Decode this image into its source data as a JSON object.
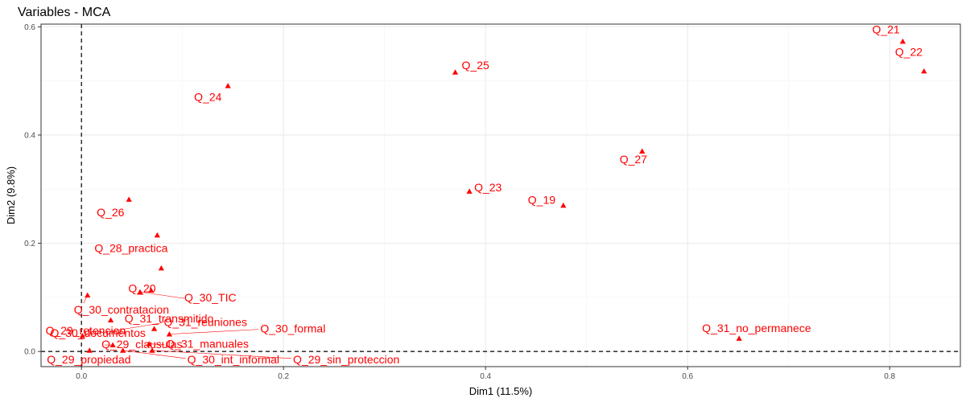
{
  "chart_data": {
    "type": "scatter",
    "title": "Variables - MCA",
    "xlabel": "Dim1 (11.5%)",
    "ylabel": "Dim2 (9.8%)",
    "xlim": [
      -0.04,
      0.87
    ],
    "ylim": [
      -0.028,
      0.605
    ],
    "xticks": [
      0.0,
      0.2,
      0.4,
      0.6,
      0.8
    ],
    "xtick_labels": [
      "0.0",
      "0.2",
      "0.4",
      "0.6",
      "0.8"
    ],
    "yticks": [
      0.0,
      0.2,
      0.4,
      0.6
    ],
    "ytick_labels": [
      "0.0",
      "0.2",
      "0.4",
      "0.6"
    ],
    "grid": true,
    "reference_lines": {
      "x": 0,
      "y": 0,
      "style": "dashed"
    },
    "marker": "triangle",
    "color": "#ff0000",
    "points": [
      {
        "label": "Q_21",
        "x": 0.813,
        "y": 0.573
      },
      {
        "label": "Q_22",
        "x": 0.834,
        "y": 0.518
      },
      {
        "label": "Q_25",
        "x": 0.37,
        "y": 0.516
      },
      {
        "label": "Q_24",
        "x": 0.145,
        "y": 0.491
      },
      {
        "label": "Q_27",
        "x": 0.555,
        "y": 0.37
      },
      {
        "label": "Q_23",
        "x": 0.384,
        "y": 0.296
      },
      {
        "label": "Q_19",
        "x": 0.477,
        "y": 0.27
      },
      {
        "label": "Q_26",
        "x": 0.047,
        "y": 0.281
      },
      {
        "label": "Q_28_practica",
        "x": 0.075,
        "y": 0.215
      },
      {
        "label": "Q_20",
        "x": 0.079,
        "y": 0.154
      },
      {
        "label": "Q_31_transmitido",
        "x": 0.069,
        "y": 0.113
      },
      {
        "label": "Q_30_TIC",
        "x": 0.058,
        "y": 0.11
      },
      {
        "label": "Q_30_contratacion",
        "x": 0.006,
        "y": 0.104
      },
      {
        "label": "Q_29_retencion",
        "x": 0.029,
        "y": 0.058
      },
      {
        "label": "Q_30_documentos",
        "x": 0.072,
        "y": 0.042
      },
      {
        "label": "Q_31_reuniones",
        "x": 0.001,
        "y": 0.029
      },
      {
        "label": "Q_30_formal",
        "x": 0.087,
        "y": 0.032
      },
      {
        "label": "Q_29_clausulas",
        "x": 0.031,
        "y": 0.012
      },
      {
        "label": "Q_31_manuales",
        "x": 0.067,
        "y": 0.014
      },
      {
        "label": "Q_31_no_permanece",
        "x": 0.651,
        "y": 0.024
      },
      {
        "label": "Q_29_propiedad",
        "x": 0.008,
        "y": 0.002
      },
      {
        "label": "Q_30_int_informal",
        "x": 0.041,
        "y": 0.002
      },
      {
        "label": "Q_29_sin_proteccion",
        "x": 0.07,
        "y": 0.002
      }
    ]
  }
}
